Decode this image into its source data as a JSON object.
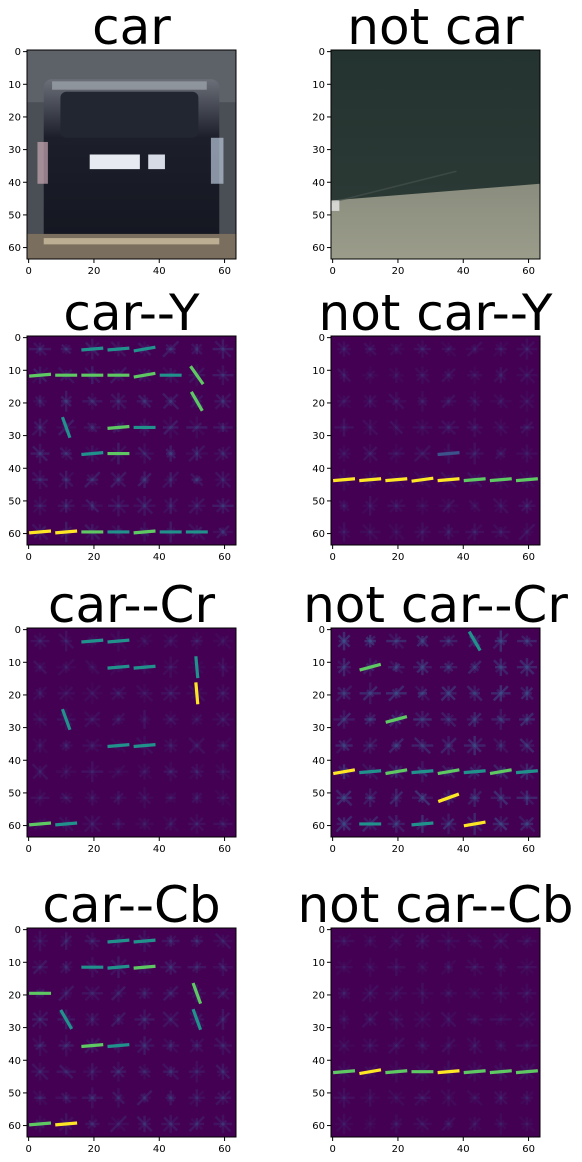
{
  "colors": {
    "hog_bg": "#440154",
    "hog_low": "#3b528b",
    "hog_mid": "#21918c",
    "hog_high": "#5ec962",
    "hog_peak": "#fde725"
  },
  "chart_data": [
    {
      "type": "heatmap",
      "kind": "image",
      "title": "car",
      "xticks": [
        "0",
        "20",
        "40",
        "60"
      ],
      "yticks": [
        "0",
        "10",
        "20",
        "30",
        "40",
        "50",
        "60"
      ],
      "xlim": [
        0,
        64
      ],
      "ylim": [
        64,
        0
      ],
      "xlabel": "",
      "ylabel": ""
    },
    {
      "type": "heatmap",
      "kind": "image",
      "title": "not car",
      "xticks": [
        "0",
        "20",
        "40",
        "60"
      ],
      "yticks": [
        "0",
        "10",
        "20",
        "30",
        "40",
        "50",
        "60"
      ],
      "xlim": [
        0,
        64
      ],
      "ylim": [
        64,
        0
      ],
      "xlabel": "",
      "ylabel": ""
    },
    {
      "type": "heatmap",
      "kind": "hog",
      "title": "car--Y",
      "xticks": [
        "0",
        "20",
        "40",
        "60"
      ],
      "yticks": [
        "0",
        "10",
        "20",
        "30",
        "40",
        "50",
        "60"
      ],
      "xlim": [
        0,
        64
      ],
      "ylim": [
        64,
        0
      ],
      "xlabel": "",
      "ylabel": ""
    },
    {
      "type": "heatmap",
      "kind": "hog",
      "title": "not car--Y",
      "xticks": [
        "0",
        "20",
        "40",
        "60"
      ],
      "yticks": [
        "0",
        "10",
        "20",
        "30",
        "40",
        "50",
        "60"
      ],
      "xlim": [
        0,
        64
      ],
      "ylim": [
        64,
        0
      ],
      "xlabel": "",
      "ylabel": ""
    },
    {
      "type": "heatmap",
      "kind": "hog",
      "title": "car--Cr",
      "xticks": [
        "0",
        "20",
        "40",
        "60"
      ],
      "yticks": [
        "0",
        "10",
        "20",
        "30",
        "40",
        "50",
        "60"
      ],
      "xlim": [
        0,
        64
      ],
      "ylim": [
        64,
        0
      ],
      "xlabel": "",
      "ylabel": ""
    },
    {
      "type": "heatmap",
      "kind": "hog",
      "title": "not car--Cr",
      "xticks": [
        "0",
        "20",
        "40",
        "60"
      ],
      "yticks": [
        "0",
        "10",
        "20",
        "30",
        "40",
        "50",
        "60"
      ],
      "xlim": [
        0,
        64
      ],
      "ylim": [
        64,
        0
      ],
      "xlabel": "",
      "ylabel": ""
    },
    {
      "type": "heatmap",
      "kind": "hog",
      "title": "car--Cb",
      "xticks": [
        "0",
        "20",
        "40",
        "60"
      ],
      "yticks": [
        "0",
        "10",
        "20",
        "30",
        "40",
        "50",
        "60"
      ],
      "xlim": [
        0,
        64
      ],
      "ylim": [
        64,
        0
      ],
      "xlabel": "",
      "ylabel": ""
    },
    {
      "type": "heatmap",
      "kind": "hog",
      "title": "not car--Cb",
      "xticks": [
        "0",
        "20",
        "40",
        "60"
      ],
      "yticks": [
        "0",
        "10",
        "20",
        "30",
        "40",
        "50",
        "60"
      ],
      "xlim": [
        0,
        64
      ],
      "ylim": [
        64,
        0
      ],
      "xlabel": "",
      "ylabel": ""
    }
  ]
}
